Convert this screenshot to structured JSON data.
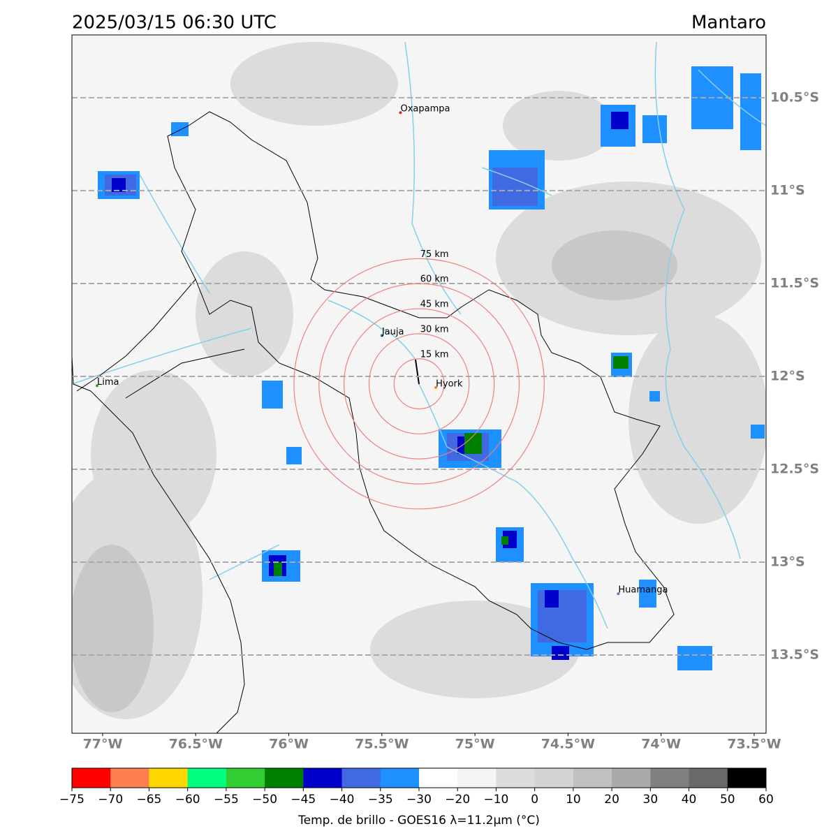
{
  "map": {
    "title": "2025/03/15 06:30 UTC",
    "region": "Mantaro",
    "xlim": [
      -77.165,
      -73.436
    ],
    "ylim": [
      -13.921,
      -10.162
    ],
    "xticks": [
      {
        "value": -77,
        "label": "77°W"
      },
      {
        "value": -76.5,
        "label": "76.5°W"
      },
      {
        "value": -76,
        "label": "76°W"
      },
      {
        "value": -75.5,
        "label": "75.5°W"
      },
      {
        "value": -75,
        "label": "75°W"
      },
      {
        "value": -74.5,
        "label": "74.5°W"
      },
      {
        "value": -74,
        "label": "74°W"
      },
      {
        "value": -73.5,
        "label": "73.5°W"
      }
    ],
    "yticks": [
      {
        "value": -10.5,
        "label": "10.5°S"
      },
      {
        "value": -11,
        "label": "11°S"
      },
      {
        "value": -11.5,
        "label": "11.5°S"
      },
      {
        "value": -12,
        "label": "12°S"
      },
      {
        "value": -12.5,
        "label": "12.5°S"
      },
      {
        "value": -13,
        "label": "13°S"
      },
      {
        "value": -13.5,
        "label": "13.5°S"
      }
    ],
    "grid": true,
    "cities": [
      {
        "name": "Oxapampa",
        "lon": -75.4,
        "lat": -10.58,
        "color": "#d62728"
      },
      {
        "name": "Jauja",
        "lon": -75.5,
        "lat": -11.78,
        "color": "#1f77b4"
      },
      {
        "name": "Hyork",
        "lon": -75.21,
        "lat": -12.06,
        "color": "#ff7f0e"
      },
      {
        "name": "Lima",
        "lon": -77.03,
        "lat": -12.05,
        "color": "#2ca02c"
      },
      {
        "name": "Huamanga",
        "lon": -74.23,
        "lat": -13.17,
        "color": "#9467bd"
      }
    ],
    "rings": {
      "center": {
        "lon": -75.3,
        "lat": -12.04
      },
      "color": "#f08080",
      "radii": [
        {
          "value": 15,
          "label": "15 km"
        },
        {
          "value": 30,
          "label": "30 km"
        },
        {
          "value": 45,
          "label": "45 km"
        },
        {
          "value": 60,
          "label": "60 km"
        },
        {
          "value": 75,
          "label": "75 km"
        }
      ]
    },
    "colorbar": {
      "label": "Temp. de brillo - GOES16 λ=11.2μm (°C)",
      "ticks": [
        {
          "value": -75,
          "label": "−75"
        },
        {
          "value": -70,
          "label": "−70"
        },
        {
          "value": -65,
          "label": "−65"
        },
        {
          "value": -60,
          "label": "−60"
        },
        {
          "value": -55,
          "label": "−55"
        },
        {
          "value": -50,
          "label": "−50"
        },
        {
          "value": -45,
          "label": "−45"
        },
        {
          "value": -40,
          "label": "−40"
        },
        {
          "value": -35,
          "label": "−35"
        },
        {
          "value": -30,
          "label": "−30"
        },
        {
          "value": -20,
          "label": "−20"
        },
        {
          "value": -10,
          "label": "−10"
        },
        0,
        10,
        20,
        30,
        40,
        50,
        60
      ],
      "colors": [
        "#ff0000",
        "#ff7f50",
        "#ffd700",
        "#00ff7f",
        "#32cd32",
        "#008000",
        "#0000cd",
        "#4169e1",
        "#1e90ff",
        "#ffffff",
        "#f5f5f5",
        "#dcdcdc",
        "#d3d3d3",
        "#c0c0c0",
        "#a9a9a9",
        "#808080",
        "#696969",
        "#000000"
      ]
    }
  }
}
